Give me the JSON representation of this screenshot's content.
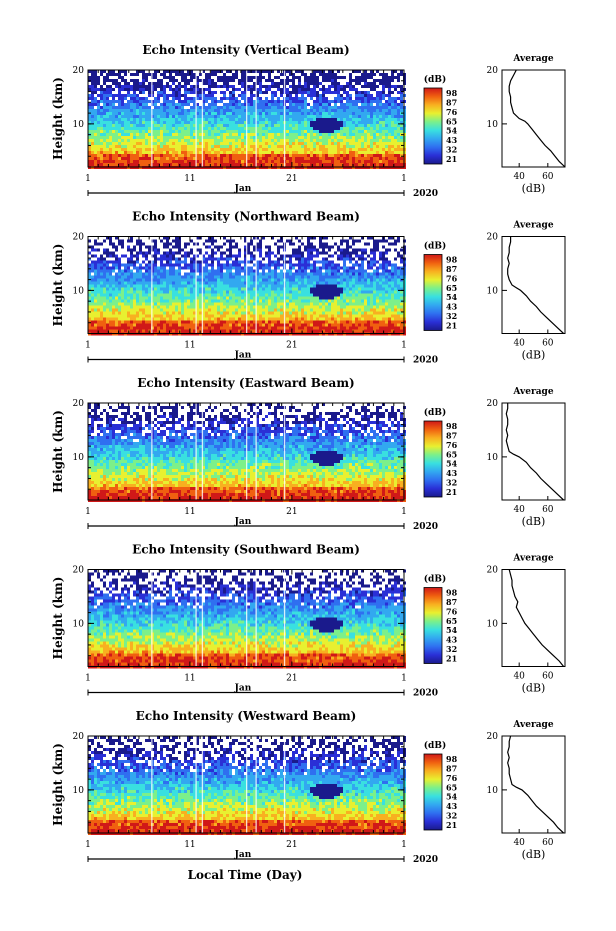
{
  "figure": {
    "x_axis_label": "Local Time (Day)",
    "month_label": "Jan",
    "year_label": "2020",
    "colorbar_unit": "(dB)",
    "colorbar_ticks": [
      "98",
      "87",
      "76",
      "65",
      "54",
      "43",
      "32",
      "21"
    ],
    "colormap": [
      "#1a1a8c",
      "#2a2fd6",
      "#2f6ff0",
      "#32a8f0",
      "#39e0e0",
      "#7cf08a",
      "#e8f030",
      "#f8b020",
      "#f06010",
      "#d01818"
    ],
    "profile_title": "Average",
    "profile_xlabel": "(dB)",
    "profile_xticks": [
      "40",
      "60"
    ],
    "ylabel": "Height (km)",
    "x_ticks": [
      "1",
      "11",
      "21",
      "1"
    ]
  },
  "chart_data": [
    {
      "type": "heatmap",
      "title": "Echo Intensity (Vertical Beam)",
      "xlabel": "",
      "ylabel": "Height (km)",
      "x_range_days": [
        1,
        32
      ],
      "y_range_km": [
        2,
        20
      ],
      "color_range_db": [
        21,
        98
      ],
      "y_ticks": [
        10,
        20
      ],
      "profile": {
        "title": "Average",
        "xlabel": "(dB)",
        "xlim_db": [
          28,
          72
        ],
        "heights_km": [
          2,
          3,
          4,
          5,
          6,
          7,
          8,
          9,
          10,
          10.5,
          11,
          12,
          13,
          14,
          15,
          16,
          17,
          18,
          19,
          20
        ],
        "values_db": [
          72,
          68,
          65,
          62,
          58,
          55,
          52,
          49,
          46,
          44,
          40,
          36,
          35,
          34,
          34,
          33,
          33,
          34,
          36,
          38
        ]
      }
    },
    {
      "type": "heatmap",
      "title": "Echo Intensity (Northward Beam)",
      "xlabel": "",
      "ylabel": "Height (km)",
      "x_range_days": [
        1,
        32
      ],
      "y_range_km": [
        2,
        20
      ],
      "color_range_db": [
        21,
        98
      ],
      "y_ticks": [
        10,
        20
      ],
      "profile": {
        "title": "Average",
        "xlabel": "(dB)",
        "xlim_db": [
          28,
          72
        ],
        "heights_km": [
          2,
          3,
          4,
          5,
          6,
          7,
          8,
          9,
          10,
          10.5,
          11,
          12,
          13,
          14,
          15,
          16,
          17,
          18,
          19,
          20
        ],
        "values_db": [
          71,
          67,
          63,
          59,
          55,
          52,
          48,
          45,
          41,
          38,
          35,
          33,
          32,
          32,
          33,
          32,
          33,
          33,
          34,
          34
        ]
      }
    },
    {
      "type": "heatmap",
      "title": "Echo Intensity (Eastward Beam)",
      "xlabel": "",
      "ylabel": "Height (km)",
      "x_range_days": [
        1,
        32
      ],
      "y_range_km": [
        2,
        20
      ],
      "color_range_db": [
        21,
        98
      ],
      "y_ticks": [
        10,
        20
      ],
      "profile": {
        "title": "Average",
        "xlabel": "(dB)",
        "xlim_db": [
          28,
          72
        ],
        "heights_km": [
          2,
          3,
          4,
          5,
          6,
          7,
          8,
          9,
          10,
          10.5,
          11,
          12,
          13,
          14,
          15,
          16,
          17,
          18,
          19,
          20
        ],
        "values_db": [
          71,
          67,
          63,
          59,
          55,
          52,
          48,
          45,
          40,
          36,
          33,
          32,
          31,
          32,
          31,
          32,
          32,
          31,
          32,
          32
        ]
      }
    },
    {
      "type": "heatmap",
      "title": "Echo Intensity (Southward Beam)",
      "xlabel": "",
      "ylabel": "Height (km)",
      "x_range_days": [
        1,
        32
      ],
      "y_range_km": [
        2,
        20
      ],
      "color_range_db": [
        21,
        98
      ],
      "y_ticks": [
        10,
        20
      ],
      "profile": {
        "title": "Average",
        "xlabel": "(dB)",
        "xlim_db": [
          28,
          72
        ],
        "heights_km": [
          2,
          3,
          4,
          5,
          6,
          7,
          8,
          9,
          10,
          11,
          12,
          13,
          14,
          15,
          16,
          17,
          18,
          19,
          20
        ],
        "values_db": [
          71,
          68,
          64,
          60,
          56,
          53,
          50,
          47,
          44,
          42,
          40,
          38,
          39,
          37,
          36,
          35,
          35,
          34,
          33
        ]
      }
    },
    {
      "type": "heatmap",
      "title": "Echo Intensity (Westward Beam)",
      "xlabel": "Local Time (Day)",
      "ylabel": "Height (km)",
      "x_range_days": [
        1,
        32
      ],
      "y_range_km": [
        2,
        20
      ],
      "color_range_db": [
        21,
        98
      ],
      "y_ticks": [
        10,
        20
      ],
      "profile": {
        "title": "Average",
        "xlabel": "(dB)",
        "xlim_db": [
          28,
          72
        ],
        "heights_km": [
          2,
          3,
          4,
          5,
          6,
          7,
          8,
          9,
          10,
          10.5,
          11,
          12,
          13,
          14,
          15,
          16,
          17,
          18,
          19,
          20
        ],
        "values_db": [
          71,
          67,
          64,
          60,
          56,
          52,
          49,
          46,
          42,
          38,
          35,
          34,
          33,
          33,
          32,
          33,
          32,
          33,
          33,
          34
        ]
      }
    }
  ]
}
